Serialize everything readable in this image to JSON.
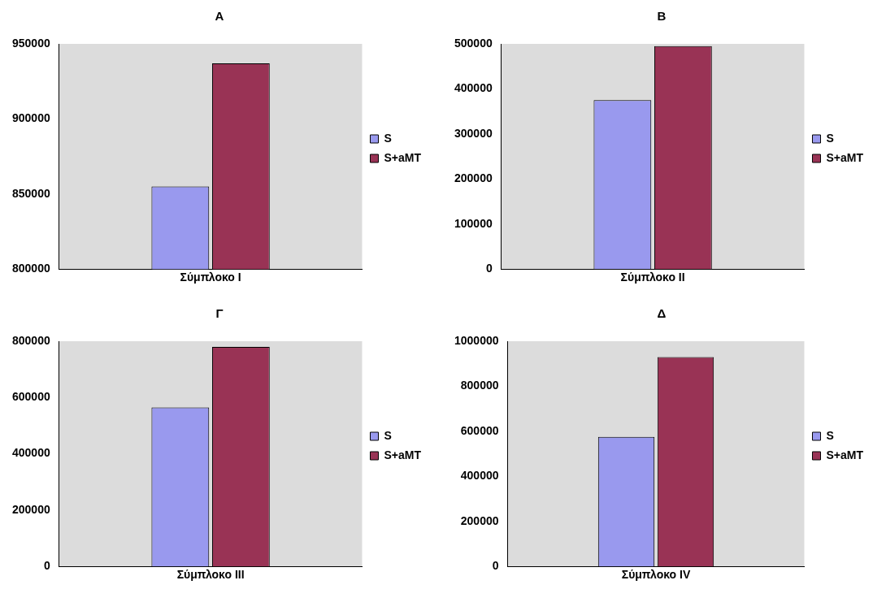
{
  "chart_data": [
    {
      "type": "bar",
      "title": "A",
      "categories": [
        "Σύμπλοκο I"
      ],
      "series": [
        {
          "name": "S",
          "color": "#9999ee",
          "values": [
            855000
          ]
        },
        {
          "name": "S+aMT",
          "color": "#993355",
          "values": [
            937000
          ]
        }
      ],
      "ylim": [
        800000,
        950000
      ],
      "yticks": [
        800000,
        850000,
        900000,
        950000
      ],
      "legend": "right",
      "grid": false
    },
    {
      "type": "bar",
      "title": "B",
      "categories": [
        "Σύμπλοκο II"
      ],
      "series": [
        {
          "name": "S",
          "color": "#9999ee",
          "values": [
            375000
          ]
        },
        {
          "name": "S+aMT",
          "color": "#993355",
          "values": [
            495000
          ]
        }
      ],
      "ylim": [
        0,
        500000
      ],
      "yticks": [
        0,
        100000,
        200000,
        300000,
        400000,
        500000
      ],
      "legend": "right",
      "grid": false
    },
    {
      "type": "bar",
      "title": "Γ",
      "categories": [
        "Σύμπλοκο III"
      ],
      "series": [
        {
          "name": "S",
          "color": "#9999ee",
          "values": [
            565000
          ]
        },
        {
          "name": "S+aMT",
          "color": "#993355",
          "values": [
            780000
          ]
        }
      ],
      "ylim": [
        0,
        800000
      ],
      "yticks": [
        0,
        200000,
        400000,
        600000,
        800000
      ],
      "legend": "right",
      "grid": false
    },
    {
      "type": "bar",
      "title": "Δ",
      "categories": [
        "Σύμπλοκο IV"
      ],
      "series": [
        {
          "name": "S",
          "color": "#9999ee",
          "values": [
            575000
          ]
        },
        {
          "name": "S+aMT",
          "color": "#993355",
          "values": [
            930000
          ]
        }
      ],
      "ylim": [
        0,
        1000000
      ],
      "yticks": [
        0,
        200000,
        400000,
        600000,
        800000,
        1000000
      ],
      "legend": "right",
      "grid": false
    }
  ]
}
